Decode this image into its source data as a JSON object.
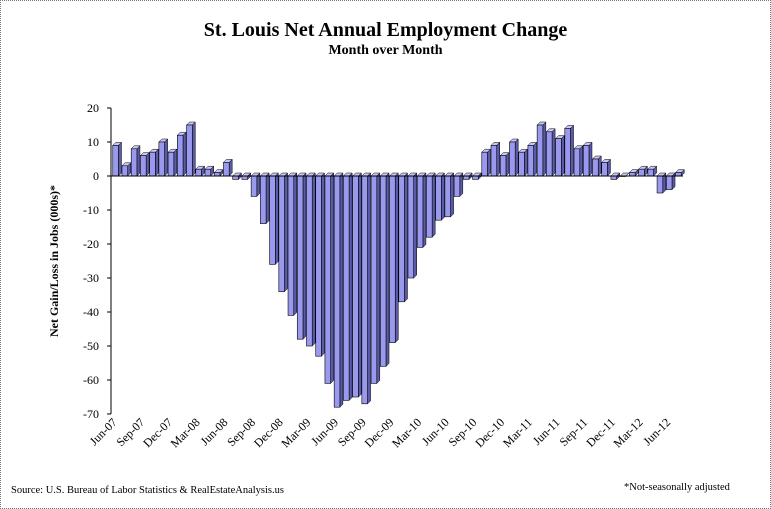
{
  "title": "St. Louis Net Annual  Employment  Change",
  "subtitle": "Month over Month",
  "source": "Source: U.S. Bureau of Labor Statistics & RealEstateAnalysis.us",
  "note": "*Not-seasonally adjusted",
  "colors": {
    "bar_front": "#9999ee",
    "bar_side": "#5a5aa8",
    "bar_top": "#c8c8f4",
    "axis": "#000000"
  },
  "chart_data": {
    "type": "bar",
    "ylabel": "Net Gain/Loss in Jobs (000s)*",
    "ylim": [
      -70,
      20
    ],
    "yticks": [
      20,
      10,
      0,
      -10,
      -20,
      -30,
      -40,
      -50,
      -60,
      -70
    ],
    "grid": false,
    "categories": [
      "Jun-07",
      "Jul-07",
      "Aug-07",
      "Sep-07",
      "Oct-07",
      "Nov-07",
      "Dec-07",
      "Jan-08",
      "Feb-08",
      "Mar-08",
      "Apr-08",
      "May-08",
      "Jun-08",
      "Jul-08",
      "Aug-08",
      "Sep-08",
      "Oct-08",
      "Nov-08",
      "Dec-08",
      "Jan-09",
      "Feb-09",
      "Mar-09",
      "Apr-09",
      "May-09",
      "Jun-09",
      "Jul-09",
      "Aug-09",
      "Sep-09",
      "Oct-09",
      "Nov-09",
      "Dec-09",
      "Jan-10",
      "Feb-10",
      "Mar-10",
      "Apr-10",
      "May-10",
      "Jun-10",
      "Jul-10",
      "Aug-10",
      "Sep-10",
      "Oct-10",
      "Nov-10",
      "Dec-10",
      "Jan-11",
      "Feb-11",
      "Mar-11",
      "Apr-11",
      "May-11",
      "Jun-11",
      "Jul-11",
      "Aug-11",
      "Sep-11",
      "Oct-11",
      "Nov-11",
      "Dec-11",
      "Jan-12",
      "Feb-12",
      "Mar-12",
      "Apr-12",
      "May-12",
      "Jun-12",
      "Jul-12"
    ],
    "xtick_labels": [
      "Jun-07",
      "Sep-07",
      "Dec-07",
      "Mar-08",
      "Jun-08",
      "Sep-08",
      "Dec-08",
      "Mar-09",
      "Jun-09",
      "Sep-09",
      "Dec-09",
      "Mar-10",
      "Jun-10",
      "Sep-10",
      "Dec-10",
      "Mar-11",
      "Jun-11",
      "Sep-11",
      "Dec-11",
      "Mar-12",
      "Jun-12"
    ],
    "values": [
      9,
      3,
      8,
      6,
      7,
      10,
      7,
      12,
      15,
      2,
      2,
      1,
      4,
      -1,
      -1,
      -6,
      -14,
      -26,
      -34,
      -41,
      -48,
      -50,
      -53,
      -61,
      -68,
      -66,
      -65,
      -67,
      -61,
      -56,
      -49,
      -37,
      -30,
      -21,
      -18,
      -13,
      -12,
      -6,
      -1,
      -1,
      7,
      9,
      6,
      10,
      7,
      9,
      15,
      13,
      11,
      14,
      8,
      9,
      5,
      4,
      -1,
      0,
      1,
      2,
      2,
      -5,
      -4,
      1
    ]
  }
}
